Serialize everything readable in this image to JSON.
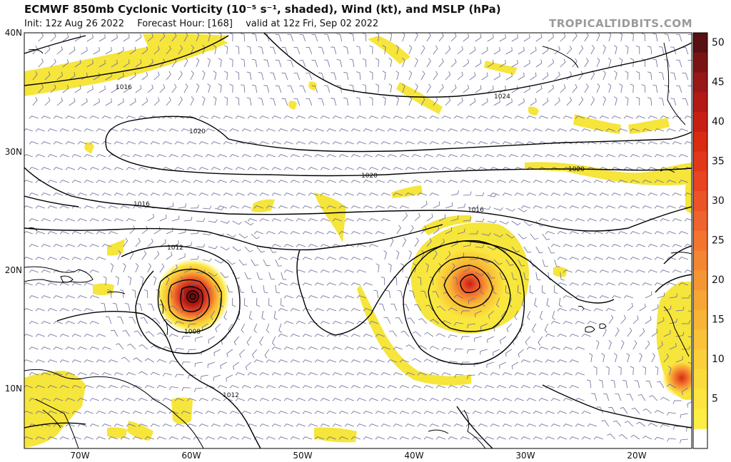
{
  "header": {
    "title": "ECMWF 850mb Cyclonic Vorticity (10⁻⁵ s⁻¹, shaded), Wind (kt), and MSLP (hPa)",
    "init": "Init: 12z Aug 26 2022",
    "forecast_hour": "Forecast Hour: [168]",
    "valid": "valid at 12z Fri, Sep 02 2022",
    "brand": "TROPICALTIDBITS.COM"
  },
  "map": {
    "lat_labels": [
      "40N",
      "30N",
      "20N",
      "10N"
    ],
    "lon_labels": [
      "70W",
      "60W",
      "50W",
      "40W",
      "30W",
      "20W"
    ],
    "isobar_labels": [
      "1016",
      "1020",
      "1024",
      "1020",
      "1020",
      "1016",
      "1016",
      "1012",
      "1008",
      "1012"
    ],
    "colors": {
      "coast": "#000000",
      "isobar": "#000000",
      "barb": "#6a6a9a",
      "vort_low": "#f6e53a",
      "vort_high": "#d42515"
    }
  },
  "colorbar": {
    "ticks": [
      "50",
      "45",
      "40",
      "35",
      "30",
      "25",
      "20",
      "15",
      "10",
      "5"
    ],
    "colors": [
      "#5a0f12",
      "#7a1414",
      "#981717",
      "#b31a16",
      "#c81f14",
      "#d92a12",
      "#e3371a",
      "#e84422",
      "#ec5327",
      "#ef632d",
      "#f2742f",
      "#f48531",
      "#f69533",
      "#f7a534",
      "#f8b435",
      "#f9c238",
      "#facf3a",
      "#fbdb3c",
      "#fbe53e",
      "#fcee42"
    ]
  }
}
